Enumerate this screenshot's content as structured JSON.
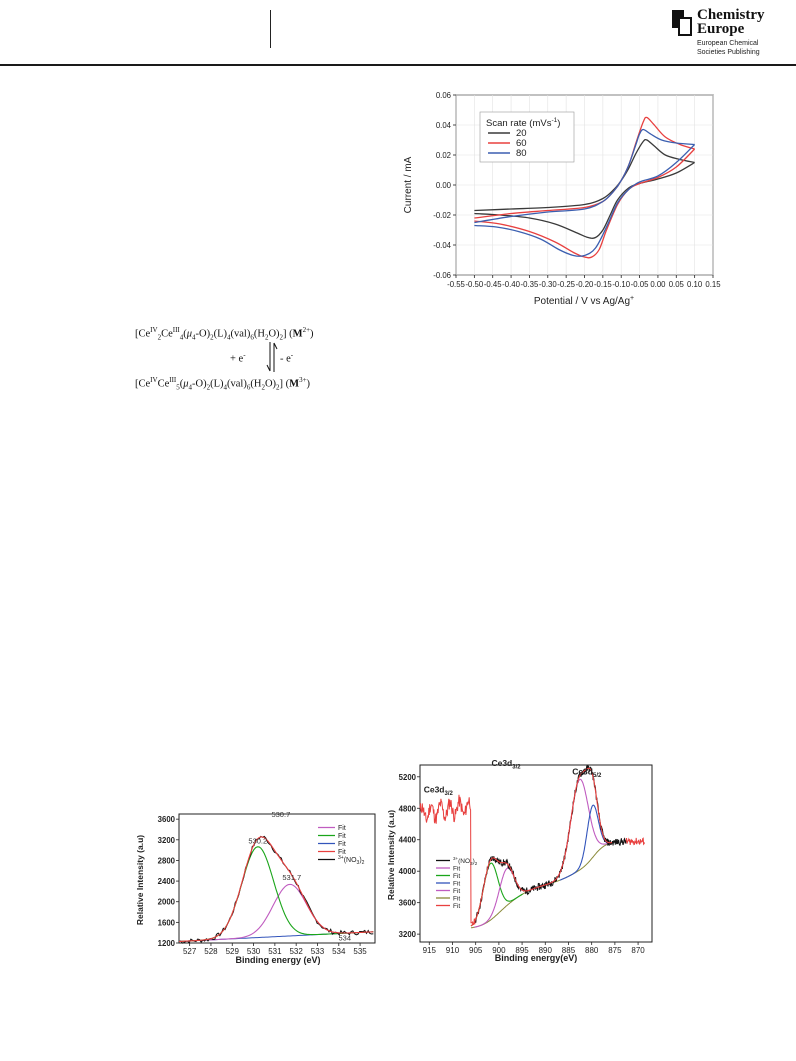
{
  "header": {
    "logo_name_line1": "Chemistry",
    "logo_name_line2": "Europe",
    "logo_sub_line1": "European Chemical",
    "logo_sub_line2": "Societies Publishing"
  },
  "scheme": {
    "top": {
      "a": "[Ce",
      "b": "IV",
      "c": "2",
      "d": "Ce",
      "e": "III",
      "f": "4",
      "g": "(",
      "h": "μ",
      "i": "4",
      "j": "-O)",
      "k": "2",
      "l": "(L)",
      "m": "4",
      "n": "(val)",
      "o": "6",
      "p": "(H",
      "q": "2",
      "r": "O)",
      "s": "2",
      "t": "] (",
      "u": "M",
      "v": "2+",
      "w": ")"
    },
    "reduce": "+ e",
    "reduce_sup": "-",
    "oxidize": "- e",
    "oxidize_sup": "-",
    "bottom": {
      "a": "[Ce",
      "b": "IV",
      "c": "",
      "d": "Ce",
      "e": "III",
      "f": "5",
      "g": "(",
      "h": "μ",
      "i": "4",
      "j": "-O)",
      "k": "2",
      "l": "(L)",
      "m": "4",
      "n": "(val)",
      "o": "6",
      "p": "(H",
      "q": "2",
      "r": "O)",
      "s": "2",
      "t": "] (",
      "u": "M",
      "v": "3+",
      "w": ")"
    }
  },
  "chart_data": [
    {
      "type": "line",
      "xlabel": "Potential / V vs Ag/Ag",
      "xlabel_sup": "+",
      "ylabel": "Current / mA",
      "xlim": [
        -0.55,
        0.15
      ],
      "ylim": [
        -0.06,
        0.06
      ],
      "x_ticks": [
        "-0.55",
        "-0.50",
        "-0.45",
        "-0.40",
        "-0.35",
        "-0.30",
        "-0.25",
        "-0.20",
        "-0.15",
        "-0.10",
        "-0.05",
        "0.00",
        "0.05",
        "0.10",
        "0.15"
      ],
      "y_ticks": [
        "-0.06",
        "-0.04",
        "-0.02",
        "0.00",
        "0.02",
        "0.04",
        "0.06"
      ],
      "legend_title": "Scan rate (mVs",
      "legend_title_sup": "-1",
      "legend_title_end": ")",
      "legend_position": "top-left",
      "series": [
        {
          "name": "20",
          "color": "#3a3a3a",
          "anodic": [
            [
              -0.5,
              -0.017
            ],
            [
              -0.4,
              -0.016
            ],
            [
              -0.3,
              -0.015
            ],
            [
              -0.2,
              -0.013
            ],
            [
              -0.15,
              -0.009
            ],
            [
              -0.12,
              -0.003
            ],
            [
              -0.1,
              0.003
            ],
            [
              -0.08,
              0.011
            ],
            [
              -0.06,
              0.021
            ],
            [
              -0.04,
              0.029
            ],
            [
              -0.03,
              0.03
            ],
            [
              -0.01,
              0.026
            ],
            [
              0.02,
              0.02
            ],
            [
              0.06,
              0.017
            ],
            [
              0.1,
              0.015
            ]
          ],
          "cathodic": [
            [
              0.1,
              0.015
            ],
            [
              0.05,
              0.008
            ],
            [
              0.0,
              0.004
            ],
            [
              -0.05,
              0.001
            ],
            [
              -0.08,
              -0.002
            ],
            [
              -0.11,
              -0.01
            ],
            [
              -0.13,
              -0.02
            ],
            [
              -0.15,
              -0.03
            ],
            [
              -0.17,
              -0.035
            ],
            [
              -0.19,
              -0.035
            ],
            [
              -0.22,
              -0.032
            ],
            [
              -0.28,
              -0.026
            ],
            [
              -0.35,
              -0.022
            ],
            [
              -0.43,
              -0.02
            ],
            [
              -0.5,
              -0.019
            ]
          ]
        },
        {
          "name": "60",
          "color": "#e8403f",
          "anodic": [
            [
              -0.5,
              -0.022
            ],
            [
              -0.4,
              -0.019
            ],
            [
              -0.3,
              -0.017
            ],
            [
              -0.2,
              -0.015
            ],
            [
              -0.15,
              -0.011
            ],
            [
              -0.12,
              -0.004
            ],
            [
              -0.1,
              0.003
            ],
            [
              -0.08,
              0.013
            ],
            [
              -0.06,
              0.028
            ],
            [
              -0.04,
              0.042
            ],
            [
              -0.03,
              0.045
            ],
            [
              -0.01,
              0.04
            ],
            [
              0.02,
              0.032
            ],
            [
              0.06,
              0.027
            ],
            [
              0.1,
              0.024
            ]
          ],
          "cathodic": [
            [
              0.1,
              0.024
            ],
            [
              0.05,
              0.012
            ],
            [
              0.0,
              0.005
            ],
            [
              -0.05,
              0.001
            ],
            [
              -0.08,
              -0.003
            ],
            [
              -0.11,
              -0.013
            ],
            [
              -0.14,
              -0.03
            ],
            [
              -0.16,
              -0.043
            ],
            [
              -0.18,
              -0.048
            ],
            [
              -0.2,
              -0.048
            ],
            [
              -0.23,
              -0.045
            ],
            [
              -0.28,
              -0.038
            ],
            [
              -0.35,
              -0.031
            ],
            [
              -0.43,
              -0.026
            ],
            [
              -0.5,
              -0.024
            ]
          ]
        },
        {
          "name": "80",
          "color": "#3b5fb0",
          "anodic": [
            [
              -0.5,
              -0.025
            ],
            [
              -0.4,
              -0.021
            ],
            [
              -0.3,
              -0.018
            ],
            [
              -0.2,
              -0.016
            ],
            [
              -0.15,
              -0.011
            ],
            [
              -0.12,
              -0.004
            ],
            [
              -0.1,
              0.003
            ],
            [
              -0.08,
              0.013
            ],
            [
              -0.06,
              0.027
            ],
            [
              -0.05,
              0.034
            ],
            [
              -0.04,
              0.037
            ],
            [
              -0.02,
              0.034
            ],
            [
              0.01,
              0.03
            ],
            [
              0.05,
              0.028
            ],
            [
              0.1,
              0.027
            ]
          ],
          "cathodic": [
            [
              0.1,
              0.027
            ],
            [
              0.05,
              0.015
            ],
            [
              0.0,
              0.006
            ],
            [
              -0.05,
              0.002
            ],
            [
              -0.08,
              -0.003
            ],
            [
              -0.11,
              -0.012
            ],
            [
              -0.14,
              -0.028
            ],
            [
              -0.17,
              -0.042
            ],
            [
              -0.2,
              -0.047
            ],
            [
              -0.23,
              -0.047
            ],
            [
              -0.27,
              -0.043
            ],
            [
              -0.32,
              -0.036
            ],
            [
              -0.38,
              -0.031
            ],
            [
              -0.44,
              -0.028
            ],
            [
              -0.5,
              -0.027
            ]
          ]
        }
      ]
    },
    {
      "type": "line",
      "xlabel": "Binding energy (eV)",
      "ylabel": "Relative Intensity (a.u)",
      "xlim": [
        535.7,
        526.5
      ],
      "ylim": [
        1200,
        3700
      ],
      "x_ticks": [
        "527",
        "528",
        "529",
        "530",
        "531",
        "532",
        "533",
        "534",
        "535"
      ],
      "y_ticks": [
        "1200",
        "1600",
        "2000",
        "2400",
        "2800",
        "3200",
        "3600"
      ],
      "annotations": [
        "530.7",
        "530.2",
        "531.7",
        "534"
      ],
      "legend_position": "top-right",
      "baseline": {
        "a": 1230,
        "b": 20.5
      },
      "peaks": [
        {
          "name": "Fit",
          "color": "#c05cc0",
          "center": 531.7,
          "height": 1000,
          "sigma": 0.78
        },
        {
          "name": "Fit",
          "color": "#1aa51a",
          "center": 530.2,
          "height": 1760,
          "sigma": 0.75
        },
        {
          "name": "Fit",
          "color": "#3355bb",
          "center": 534,
          "height": 0,
          "sigma": 1
        }
      ],
      "series": [
        {
          "name": "Fit",
          "color": "#c05cc0",
          "role": "peak1"
        },
        {
          "name": "Fit",
          "color": "#1aa51a",
          "role": "peak2"
        },
        {
          "name": "Fit",
          "color": "#3355bb",
          "role": "baseline"
        },
        {
          "name": "Fit",
          "color": "#e8403f",
          "role": "envelope"
        },
        {
          "name": "3",
          "name_sup": "3+",
          "name_mid": "(NO",
          "name_sub": "3",
          "name_end": ")",
          "name_sub2": "2",
          "color": "#111111",
          "role": "data"
        }
      ]
    },
    {
      "type": "line",
      "xlabel": "Binding energy(eV)",
      "ylabel": "Relative Intensity (a.u)",
      "xlim": [
        917,
        867
      ],
      "ylim": [
        3100,
        5350
      ],
      "x_ticks": [
        "915",
        "910",
        "905",
        "900",
        "895",
        "890",
        "885",
        "880",
        "875",
        "870"
      ],
      "y_ticks": [
        "3200",
        "3600",
        "4000",
        "4400",
        "4800",
        "5200"
      ],
      "annotations": [
        {
          "text": "Ce3d",
          "sub": "3/2"
        },
        {
          "text": "Ce3d",
          "sub": "3/2"
        },
        {
          "text": "Ce3d",
          "sub": "5/2"
        }
      ],
      "legend_position": "bottom-left",
      "peaks": [
        {
          "color": "#1aa51a",
          "center": 901.8,
          "height": 720,
          "sigma": 1.6
        },
        {
          "color": "#c05cc0",
          "center": 898.3,
          "height": 470,
          "sigma": 1.6
        },
        {
          "color": "#c05cc0",
          "center": 882.6,
          "height": 1150,
          "sigma": 1.9
        },
        {
          "color": "#3355bb",
          "center": 879.8,
          "height": 660,
          "sigma": 1.2
        }
      ],
      "series": [
        {
          "name": "3",
          "name_sup": "3+",
          "name_mid": "(NO",
          "name_sub": "3",
          "name_end": ")",
          "name_sub2": "2",
          "color": "#111111"
        },
        {
          "name": "Fit",
          "color": "#c05cc0"
        },
        {
          "name": "Fit",
          "color": "#1aa51a"
        },
        {
          "name": "Fit",
          "color": "#3355bb"
        },
        {
          "name": "Fit",
          "color": "#c05cc0"
        },
        {
          "name": "Fit",
          "color": "#8a8a3a"
        },
        {
          "name": "Fit",
          "color": "#e8403f"
        }
      ]
    }
  ]
}
